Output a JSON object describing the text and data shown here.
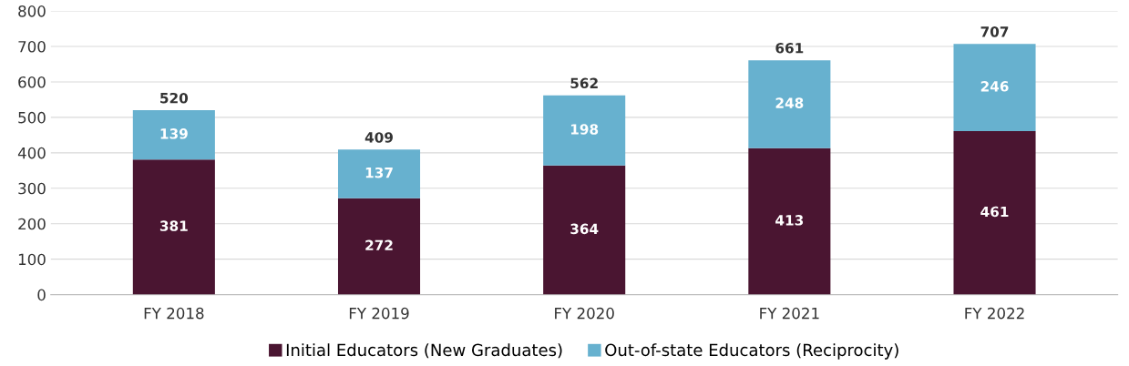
{
  "chart_data": {
    "type": "bar",
    "stacked": true,
    "categories": [
      "FY 2018",
      "FY 2019",
      "FY 2020",
      "FY 2021",
      "FY 2022"
    ],
    "series": [
      {
        "name": "Initial Educators (New Graduates)",
        "color": "#4a1531",
        "values": [
          381,
          272,
          364,
          413,
          461
        ]
      },
      {
        "name": "Out-of-state Educators (Reciprocity)",
        "color": "#67b1cf",
        "values": [
          139,
          137,
          198,
          248,
          246
        ]
      }
    ],
    "totals": [
      "520",
      "409",
      "562",
      "661",
      "707"
    ],
    "data_labels": true,
    "ylim": [
      0,
      800
    ],
    "yticks": [
      0,
      100,
      200,
      300,
      400,
      500,
      600,
      700,
      800
    ],
    "grid": "y",
    "legend": "bottom"
  }
}
